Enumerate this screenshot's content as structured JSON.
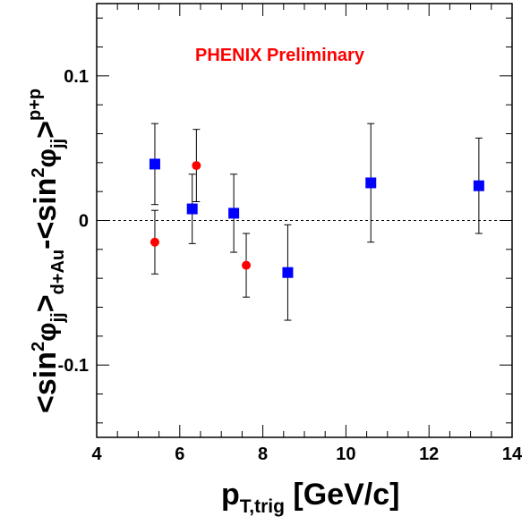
{
  "chart_data": {
    "type": "scatter",
    "title": "",
    "annotation": "PHENIX Preliminary",
    "xlabel": {
      "main": "p",
      "sub": "T,trig",
      "rest": " [GeV/c]"
    },
    "ylabel": {
      "p1": "<sin",
      "p2": "2",
      "p3": "φ",
      "p4": "jj",
      "p5": ">",
      "p6": "d+Au",
      "p7": "-<sin",
      "p8": "2",
      "p9": "φ",
      "p10": "jj",
      "p11": ">",
      "p12": "p+p"
    },
    "xlim": [
      4,
      14
    ],
    "ylim": [
      -0.15,
      0.15
    ],
    "x_ticks": [
      4,
      6,
      8,
      10,
      12,
      14
    ],
    "x_tick_labels": [
      "4",
      "6",
      "8",
      "10",
      "12",
      "14"
    ],
    "y_ticks": [
      0.1,
      0,
      -0.1
    ],
    "y_tick_labels": [
      "0.1",
      "0",
      "-0.1"
    ],
    "reference_line_y": 0,
    "grid": false,
    "legend": "none",
    "series": [
      {
        "marker": "square",
        "color": "#0000ff",
        "points": [
          {
            "x": 5.4,
            "y": 0.039,
            "err": 0.028
          },
          {
            "x": 6.3,
            "y": 0.008,
            "err": 0.024
          },
          {
            "x": 7.3,
            "y": 0.005,
            "err": 0.027
          },
          {
            "x": 8.6,
            "y": -0.036,
            "err": 0.033
          },
          {
            "x": 10.6,
            "y": 0.026,
            "err": 0.041
          },
          {
            "x": 13.2,
            "y": 0.024,
            "err": 0.033
          }
        ]
      },
      {
        "marker": "circle",
        "color": "#ff0000",
        "points": [
          {
            "x": 5.4,
            "y": -0.015,
            "err": 0.022
          },
          {
            "x": 6.4,
            "y": 0.038,
            "err": 0.025
          },
          {
            "x": 7.6,
            "y": -0.031,
            "err": 0.022
          }
        ]
      }
    ]
  }
}
